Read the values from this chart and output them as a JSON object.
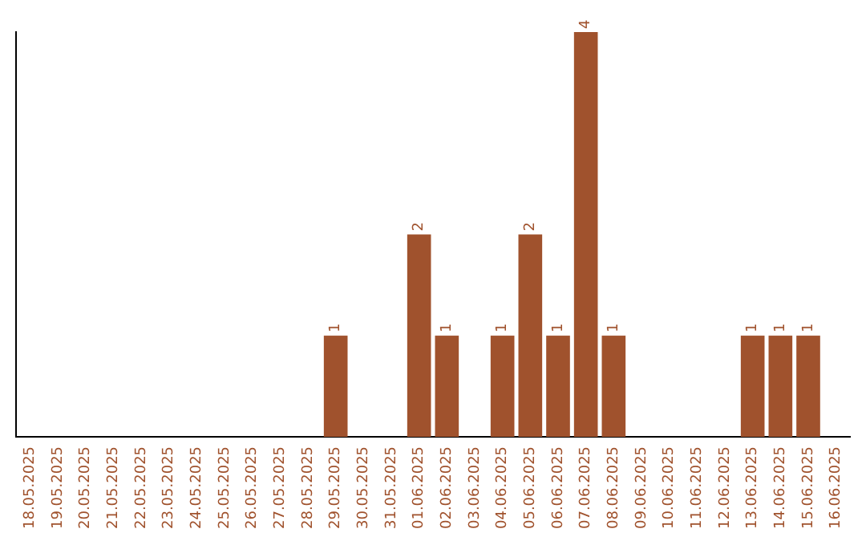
{
  "chart_data": {
    "type": "bar",
    "categories": [
      "18.05.2025",
      "19.05.2025",
      "20.05.2025",
      "21.05.2025",
      "22.05.2025",
      "23.05.2025",
      "24.05.2025",
      "25.05.2025",
      "26.05.2025",
      "27.05.2025",
      "28.05.2025",
      "29.05.2025",
      "30.05.2025",
      "31.05.2025",
      "01.06.2025",
      "02.06.2025",
      "03.06.2025",
      "04.06.2025",
      "05.06.2025",
      "06.06.2025",
      "07.06.2025",
      "08.06.2025",
      "09.06.2025",
      "10.06.2025",
      "11.06.2025",
      "12.06.2025",
      "13.06.2025",
      "14.06.2025",
      "15.06.2025",
      "16.06.2025"
    ],
    "values": [
      0,
      0,
      0,
      0,
      0,
      0,
      0,
      0,
      0,
      0,
      0,
      1,
      0,
      0,
      2,
      1,
      0,
      1,
      2,
      1,
      4,
      1,
      0,
      0,
      0,
      0,
      1,
      1,
      1,
      0
    ],
    "value_labels": [
      null,
      null,
      null,
      null,
      null,
      null,
      null,
      null,
      null,
      null,
      null,
      "1",
      null,
      null,
      "2",
      "1",
      null,
      "1",
      "2",
      "1",
      "4",
      "1",
      null,
      null,
      null,
      null,
      "1",
      "1",
      "1",
      null
    ],
    "color": "#a0522d",
    "ylim": [
      0,
      4
    ],
    "tick_labels": "x",
    "grid": false,
    "legend": false
  }
}
